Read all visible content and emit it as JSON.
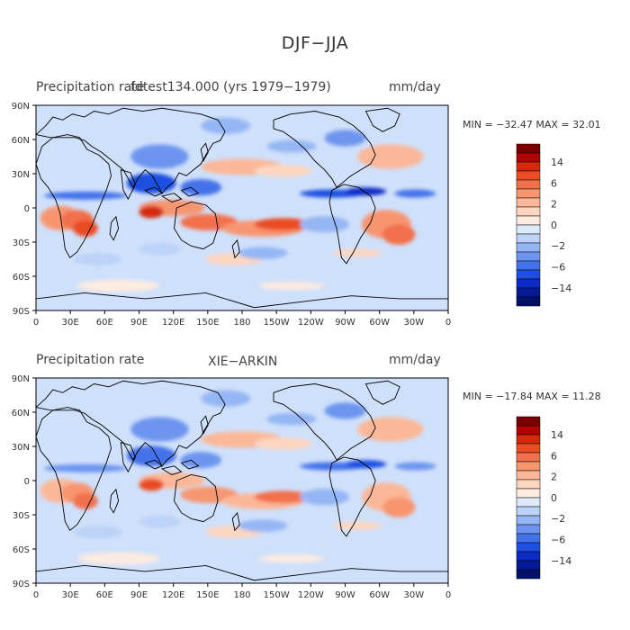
{
  "figure": {
    "title": "DJF−JJA"
  },
  "panels": [
    {
      "id": "top",
      "title_left": "Precipitation rate",
      "title_overlap": "fdtest134.000 (yrs 1979−1979)",
      "units": "mm/day",
      "minmax": "MIN = −32.47  MAX =  32.01"
    },
    {
      "id": "bottom",
      "title_left": "Precipitation rate",
      "title_center": "XIE−ARKIN",
      "units": "mm/day",
      "minmax": "MIN = −17.84  MAX =  11.28"
    }
  ],
  "axes": {
    "lat_ticks": [
      "90N",
      "60N",
      "30N",
      "0",
      "30S",
      "60S",
      "90S"
    ],
    "lon_ticks": [
      "0",
      "30E",
      "60E",
      "90E",
      "120E",
      "150E",
      "180",
      "150W",
      "120W",
      "90W",
      "60W",
      "30W",
      "0"
    ]
  },
  "colorbar": {
    "labels": [
      "14",
      "6",
      "2",
      "0",
      "−2",
      "−6",
      "−14"
    ],
    "colors": [
      "#7a0000",
      "#b30000",
      "#d42a0a",
      "#ea4c23",
      "#f2704b",
      "#f7956f",
      "#fbb898",
      "#fdd6c0",
      "#fdebe0",
      "#ddeafa",
      "#bcd3f7",
      "#94b6f4",
      "#6d95ef",
      "#4472ea",
      "#1f4fe0",
      "#0a2bc4",
      "#061a96",
      "#03106a"
    ]
  },
  "colors": {
    "ocean_base": "#cfe0fb",
    "coast": "#000000"
  }
}
